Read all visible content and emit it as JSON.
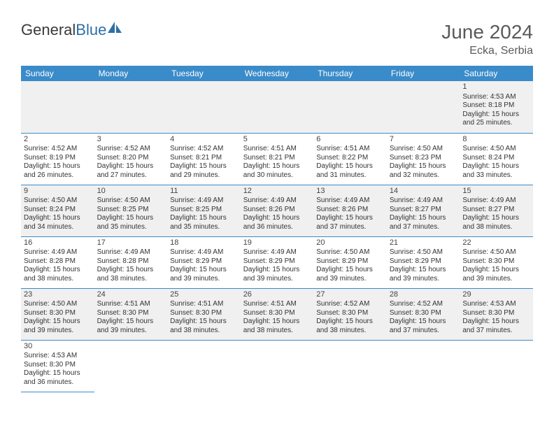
{
  "logo": {
    "part1": "General",
    "part2": "Blue"
  },
  "title": "June 2024",
  "location": "Ecka, Serbia",
  "header_bg": "#3a8bc9",
  "header_fg": "#ffffff",
  "divider_color": "#3a8bc9",
  "alt_row_bg": "#f0f0f0",
  "text_color": "#333333",
  "days": [
    "Sunday",
    "Monday",
    "Tuesday",
    "Wednesday",
    "Thursday",
    "Friday",
    "Saturday"
  ],
  "weeks": [
    [
      null,
      null,
      null,
      null,
      null,
      null,
      {
        "n": "1",
        "sr": "4:53 AM",
        "ss": "8:18 PM",
        "dl": "15 hours and 25 minutes."
      }
    ],
    [
      {
        "n": "2",
        "sr": "4:52 AM",
        "ss": "8:19 PM",
        "dl": "15 hours and 26 minutes."
      },
      {
        "n": "3",
        "sr": "4:52 AM",
        "ss": "8:20 PM",
        "dl": "15 hours and 27 minutes."
      },
      {
        "n": "4",
        "sr": "4:52 AM",
        "ss": "8:21 PM",
        "dl": "15 hours and 29 minutes."
      },
      {
        "n": "5",
        "sr": "4:51 AM",
        "ss": "8:21 PM",
        "dl": "15 hours and 30 minutes."
      },
      {
        "n": "6",
        "sr": "4:51 AM",
        "ss": "8:22 PM",
        "dl": "15 hours and 31 minutes."
      },
      {
        "n": "7",
        "sr": "4:50 AM",
        "ss": "8:23 PM",
        "dl": "15 hours and 32 minutes."
      },
      {
        "n": "8",
        "sr": "4:50 AM",
        "ss": "8:24 PM",
        "dl": "15 hours and 33 minutes."
      }
    ],
    [
      {
        "n": "9",
        "sr": "4:50 AM",
        "ss": "8:24 PM",
        "dl": "15 hours and 34 minutes."
      },
      {
        "n": "10",
        "sr": "4:50 AM",
        "ss": "8:25 PM",
        "dl": "15 hours and 35 minutes."
      },
      {
        "n": "11",
        "sr": "4:49 AM",
        "ss": "8:25 PM",
        "dl": "15 hours and 35 minutes."
      },
      {
        "n": "12",
        "sr": "4:49 AM",
        "ss": "8:26 PM",
        "dl": "15 hours and 36 minutes."
      },
      {
        "n": "13",
        "sr": "4:49 AM",
        "ss": "8:26 PM",
        "dl": "15 hours and 37 minutes."
      },
      {
        "n": "14",
        "sr": "4:49 AM",
        "ss": "8:27 PM",
        "dl": "15 hours and 37 minutes."
      },
      {
        "n": "15",
        "sr": "4:49 AM",
        "ss": "8:27 PM",
        "dl": "15 hours and 38 minutes."
      }
    ],
    [
      {
        "n": "16",
        "sr": "4:49 AM",
        "ss": "8:28 PM",
        "dl": "15 hours and 38 minutes."
      },
      {
        "n": "17",
        "sr": "4:49 AM",
        "ss": "8:28 PM",
        "dl": "15 hours and 38 minutes."
      },
      {
        "n": "18",
        "sr": "4:49 AM",
        "ss": "8:29 PM",
        "dl": "15 hours and 39 minutes."
      },
      {
        "n": "19",
        "sr": "4:49 AM",
        "ss": "8:29 PM",
        "dl": "15 hours and 39 minutes."
      },
      {
        "n": "20",
        "sr": "4:50 AM",
        "ss": "8:29 PM",
        "dl": "15 hours and 39 minutes."
      },
      {
        "n": "21",
        "sr": "4:50 AM",
        "ss": "8:29 PM",
        "dl": "15 hours and 39 minutes."
      },
      {
        "n": "22",
        "sr": "4:50 AM",
        "ss": "8:30 PM",
        "dl": "15 hours and 39 minutes."
      }
    ],
    [
      {
        "n": "23",
        "sr": "4:50 AM",
        "ss": "8:30 PM",
        "dl": "15 hours and 39 minutes."
      },
      {
        "n": "24",
        "sr": "4:51 AM",
        "ss": "8:30 PM",
        "dl": "15 hours and 39 minutes."
      },
      {
        "n": "25",
        "sr": "4:51 AM",
        "ss": "8:30 PM",
        "dl": "15 hours and 38 minutes."
      },
      {
        "n": "26",
        "sr": "4:51 AM",
        "ss": "8:30 PM",
        "dl": "15 hours and 38 minutes."
      },
      {
        "n": "27",
        "sr": "4:52 AM",
        "ss": "8:30 PM",
        "dl": "15 hours and 38 minutes."
      },
      {
        "n": "28",
        "sr": "4:52 AM",
        "ss": "8:30 PM",
        "dl": "15 hours and 37 minutes."
      },
      {
        "n": "29",
        "sr": "4:53 AM",
        "ss": "8:30 PM",
        "dl": "15 hours and 37 minutes."
      }
    ],
    [
      {
        "n": "30",
        "sr": "4:53 AM",
        "ss": "8:30 PM",
        "dl": "15 hours and 36 minutes."
      },
      null,
      null,
      null,
      null,
      null,
      null
    ]
  ],
  "labels": {
    "sunrise": "Sunrise:",
    "sunset": "Sunset:",
    "daylight": "Daylight:"
  }
}
